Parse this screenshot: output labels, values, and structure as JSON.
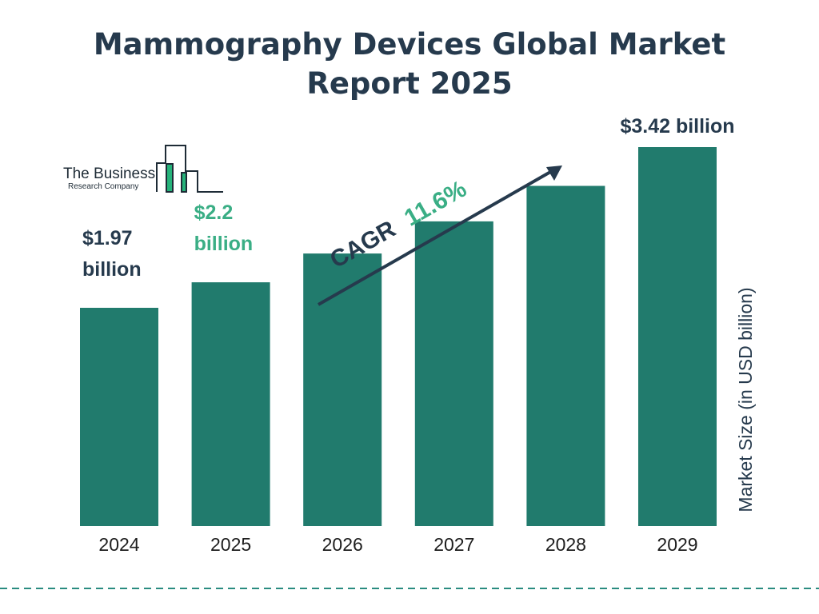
{
  "title_lines": [
    "Mammography Devices Global Market",
    "Report 2025"
  ],
  "logo": {
    "line1": "The Business",
    "line2": "Research Company",
    "accent_color": "#26b37a",
    "line_color": "#1e2b36"
  },
  "colors": {
    "bar": "#217b6d",
    "title": "#263a4d",
    "label_dark": "#263a4d",
    "label_highlight": "#3aae85",
    "cagr_accent": "#3aae85",
    "dashed_line": "#2a8c80"
  },
  "cagr": {
    "label": "CAGR",
    "value": "11.6%"
  },
  "chart_data": {
    "type": "bar",
    "title": "Mammography Devices Global Market Report 2025",
    "categories": [
      "2024",
      "2025",
      "2026",
      "2027",
      "2028",
      "2029"
    ],
    "values": [
      1.97,
      2.2,
      2.46,
      2.75,
      3.07,
      3.42
    ],
    "ylabel": "Market Size (in USD billion)",
    "xlabel": "",
    "ylim": [
      0,
      3.42
    ],
    "grid": false,
    "legend": "none",
    "data_labels": [
      {
        "category": "2024",
        "lines": [
          "$1.97",
          "billion"
        ],
        "highlight": false
      },
      {
        "category": "2025",
        "lines": [
          "$2.2",
          "billion"
        ],
        "highlight": true
      },
      {
        "category": "2029",
        "lines": [
          "$3.42 billion"
        ],
        "highlight": false
      }
    ]
  }
}
